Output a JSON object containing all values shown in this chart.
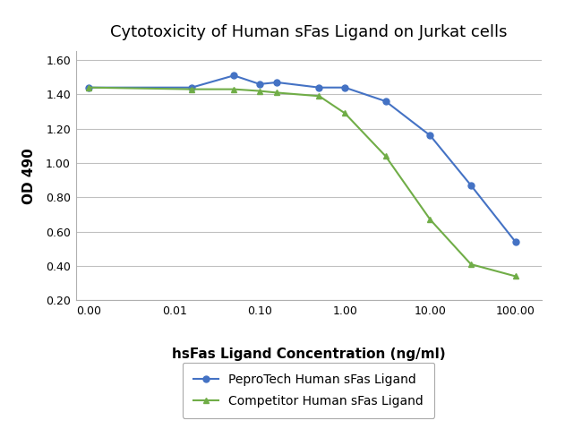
{
  "title": "Cytotoxicity of Human sFas Ligand on Jurkat cells",
  "xlabel": "hsFas Ligand Concentration (ng/ml)",
  "ylabel": "OD 490",
  "background_color": "#ffffff",
  "plot_bg_color": "#ffffff",
  "grid_color": "#c0c0c0",
  "blue_x": [
    0.001,
    0.016,
    0.05,
    0.1,
    0.16,
    0.5,
    1.0,
    3.0,
    10.0,
    30.0,
    100.0
  ],
  "blue_y": [
    1.44,
    1.44,
    1.51,
    1.46,
    1.47,
    1.44,
    1.44,
    1.36,
    1.16,
    0.87,
    0.54
  ],
  "green_x": [
    0.001,
    0.016,
    0.05,
    0.1,
    0.16,
    0.5,
    1.0,
    3.0,
    10.0,
    30.0,
    100.0
  ],
  "green_y": [
    1.44,
    1.43,
    1.43,
    1.42,
    1.41,
    1.39,
    1.29,
    1.04,
    0.67,
    0.41,
    0.34
  ],
  "blue_color": "#4472c4",
  "green_color": "#70ad47",
  "legend_labels": [
    "PeproTech Human sFas Ligand",
    "Competitor Human sFas Ligand"
  ],
  "ylim": [
    0.2,
    1.65
  ],
  "yticks": [
    0.2,
    0.4,
    0.6,
    0.8,
    1.0,
    1.2,
    1.4,
    1.6
  ],
  "xtick_labels": [
    "0.00",
    "0.01",
    "0.10",
    "1.00",
    "10.00",
    "100.00"
  ],
  "xtick_positions": [
    0.001,
    0.01,
    0.1,
    1.0,
    10.0,
    100.0
  ],
  "title_fontsize": 13,
  "label_fontsize": 11,
  "tick_fontsize": 9,
  "legend_fontsize": 10,
  "line_width": 1.5,
  "marker_size": 5
}
